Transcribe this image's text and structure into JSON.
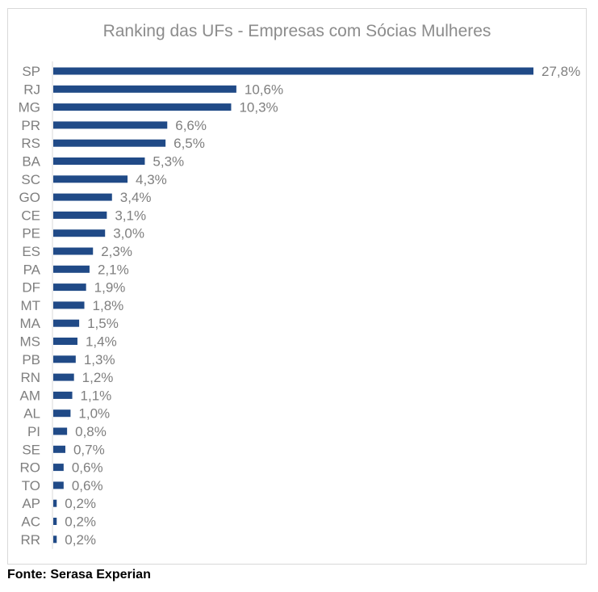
{
  "source": "Fonte: Serasa Experian",
  "colors": {
    "bar": "#204a87",
    "text": "#7f7f7f",
    "axis": "#d9d9d9",
    "frame": "#d9d9d9"
  },
  "chart_data": {
    "type": "bar",
    "orientation": "horizontal",
    "title": "Ranking das UFs - Empresas com Sócias Mulheres",
    "xlabel": "",
    "ylabel": "",
    "grid": false,
    "legend": "none",
    "xlim": [
      0,
      27.8
    ],
    "categories": [
      "SP",
      "RJ",
      "MG",
      "PR",
      "RS",
      "BA",
      "SC",
      "GO",
      "CE",
      "PE",
      "ES",
      "PA",
      "DF",
      "MT",
      "MA",
      "MS",
      "PB",
      "RN",
      "AM",
      "AL",
      "PI",
      "SE",
      "RO",
      "TO",
      "AP",
      "AC",
      "RR"
    ],
    "values": [
      27.8,
      10.6,
      10.3,
      6.6,
      6.5,
      5.3,
      4.3,
      3.4,
      3.1,
      3.0,
      2.3,
      2.1,
      1.9,
      1.8,
      1.5,
      1.4,
      1.3,
      1.2,
      1.1,
      1.0,
      0.8,
      0.7,
      0.6,
      0.6,
      0.2,
      0.2,
      0.2
    ],
    "data_labels": [
      "27,8%",
      "10,6%",
      "10,3%",
      "6,6%",
      "6,5%",
      "5,3%",
      "4,3%",
      "3,4%",
      "3,1%",
      "3,0%",
      "2,3%",
      "2,1%",
      "1,9%",
      "1,8%",
      "1,5%",
      "1,4%",
      "1,3%",
      "1,2%",
      "1,1%",
      "1,0%",
      "0,8%",
      "0,7%",
      "0,6%",
      "0,6%",
      "0,2%",
      "0,2%",
      "0,2%"
    ]
  }
}
